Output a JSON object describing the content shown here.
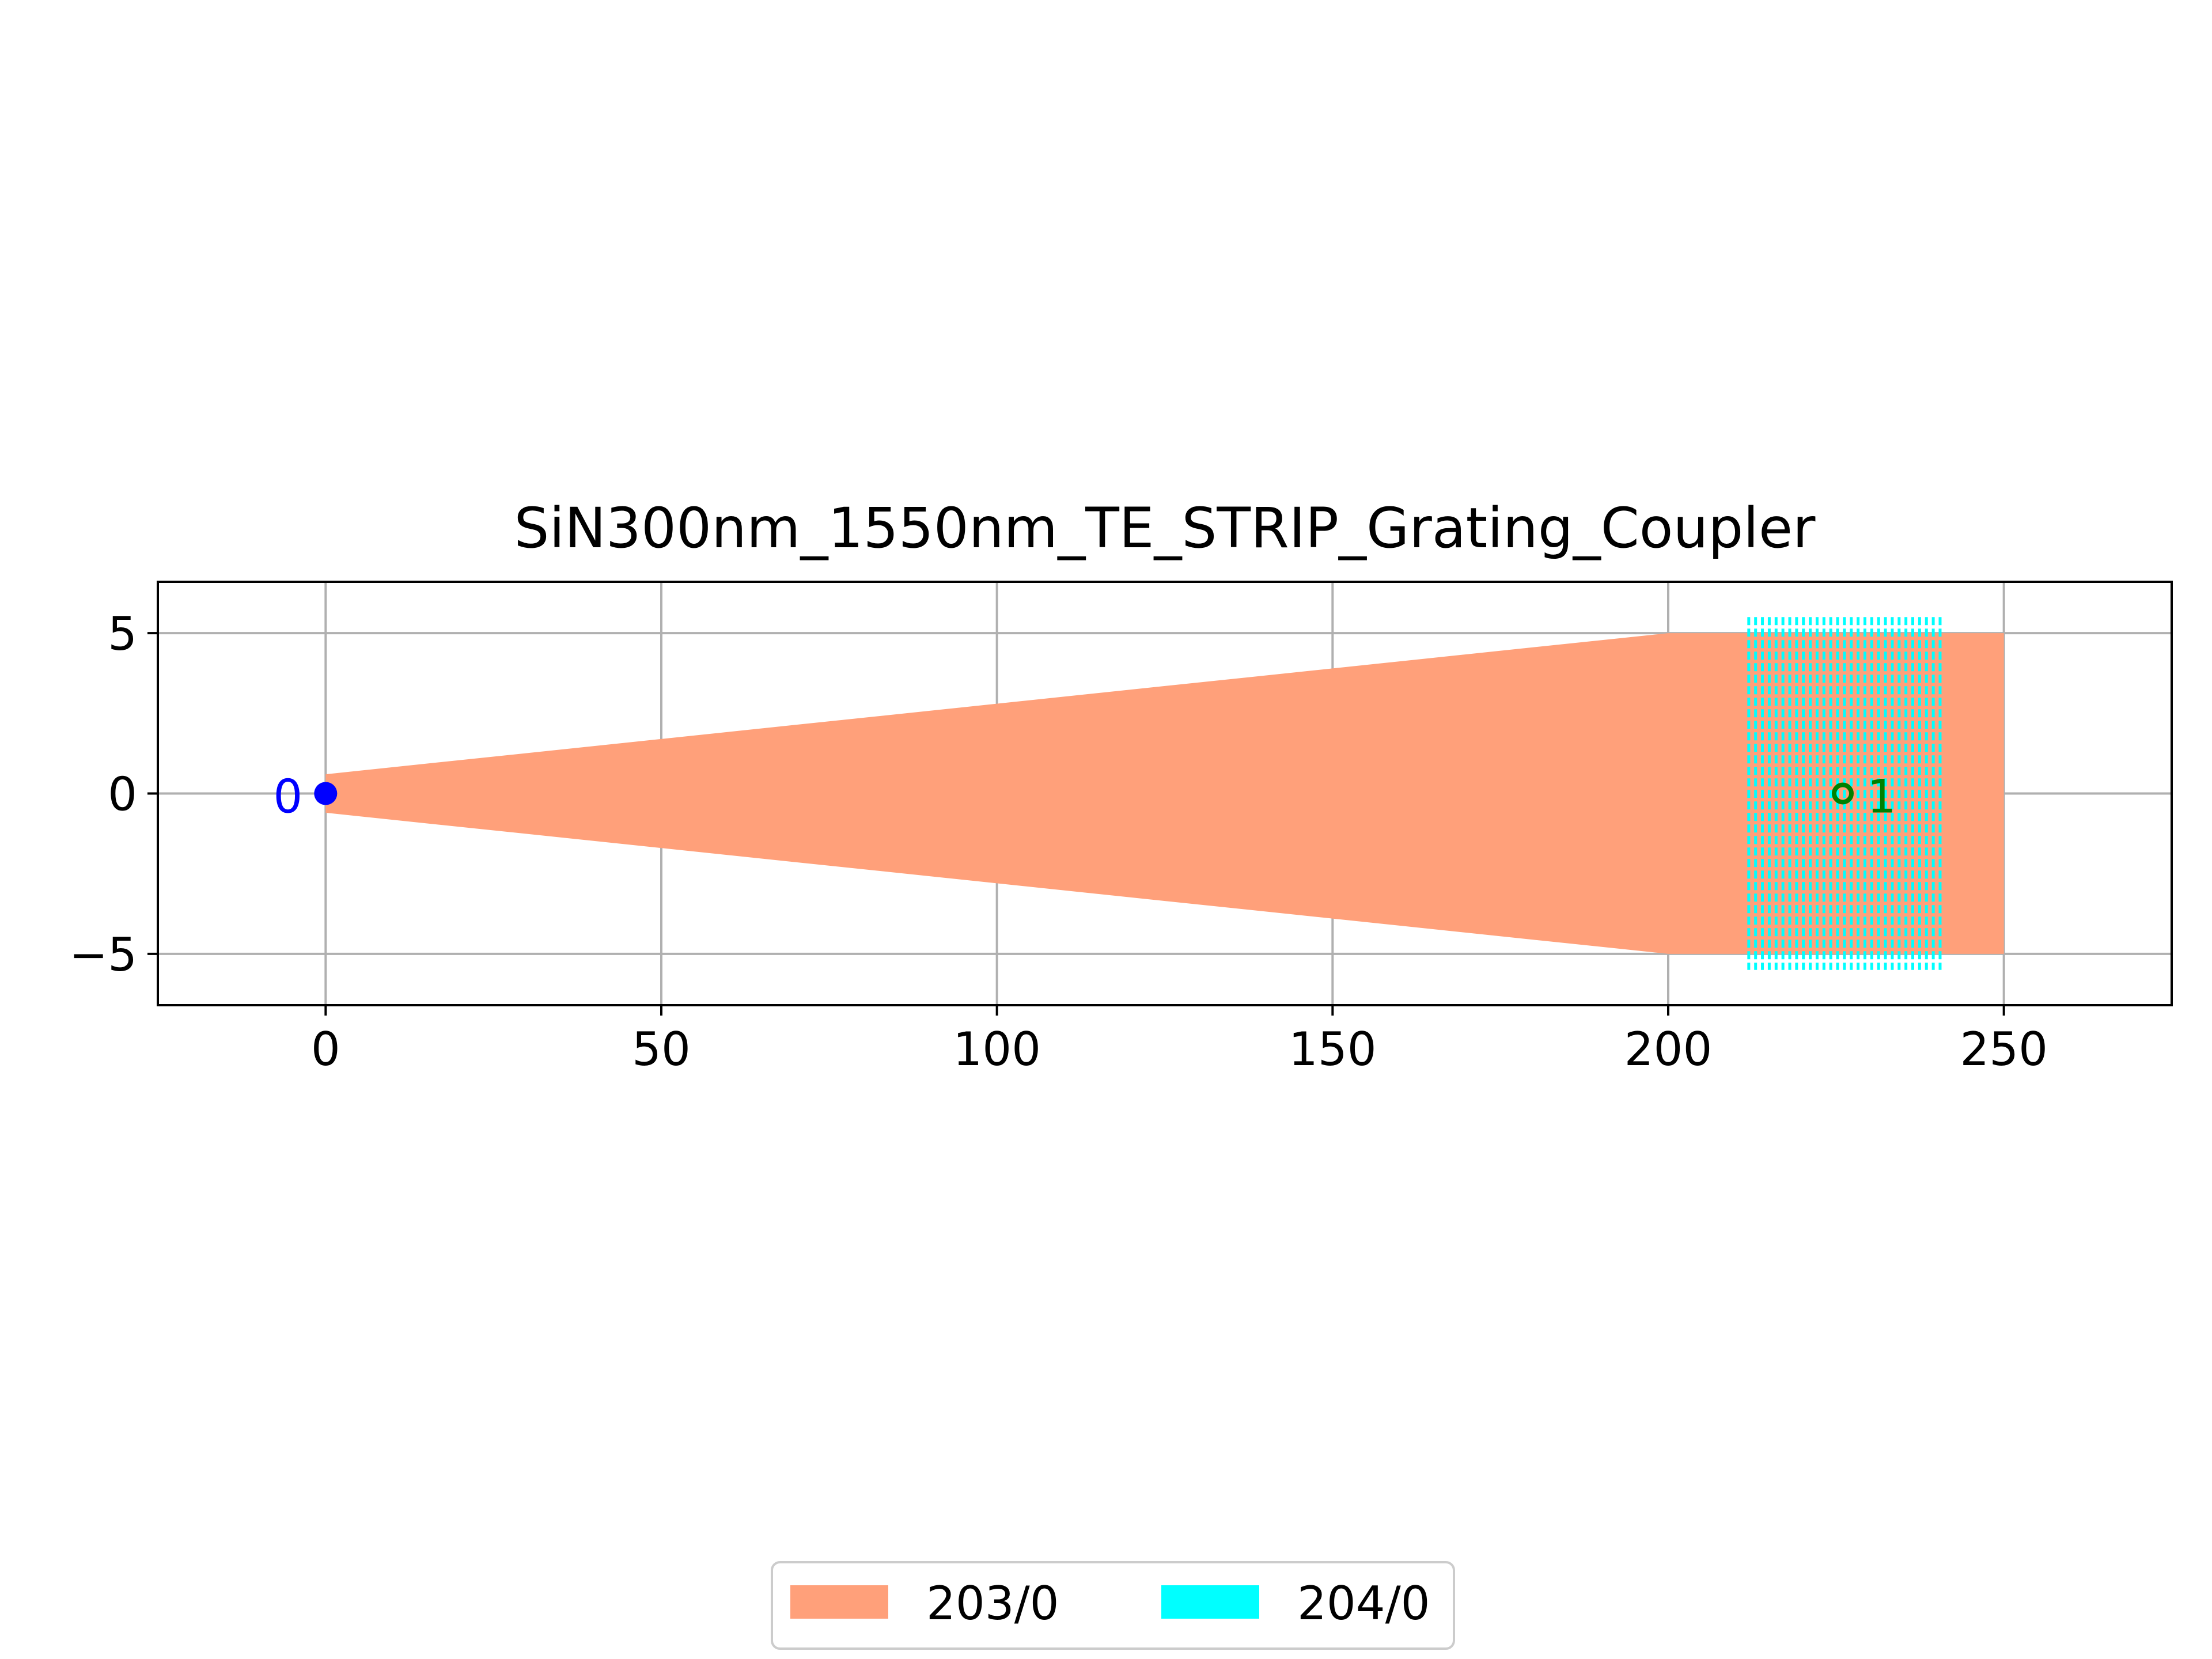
{
  "chart_data": {
    "type": "layout",
    "title": "SiN300nm_1550nm_TE_STRIP_Grating_Coupler",
    "xlabel": "",
    "ylabel": "",
    "xlim": [
      -25,
      275
    ],
    "ylim": [
      -6.6,
      6.6
    ],
    "x_ticks": [
      0,
      50,
      100,
      150,
      200,
      250
    ],
    "y_ticks": [
      -5,
      0,
      5
    ],
    "y_tick_labels": [
      "−5",
      "0",
      "5"
    ],
    "grid": true,
    "legend": {
      "placement": "bottom-center",
      "columns": 2
    },
    "layers": [
      {
        "name": "203/0",
        "color": "#ffa07a",
        "polygon": [
          [
            0,
            0.6
          ],
          [
            200,
            5
          ],
          [
            250,
            5
          ],
          [
            250,
            -5
          ],
          [
            200,
            -5
          ],
          [
            0,
            -0.6
          ]
        ]
      },
      {
        "name": "204/0",
        "color": "#00ffff",
        "grating": {
          "x_start": 212,
          "x_end": 240.5,
          "count": 29,
          "y_min": -5.5,
          "y_max": 5.5
        }
      }
    ],
    "ports": [
      {
        "label": "0",
        "x": 0,
        "y": 0,
        "color": "#0000ff",
        "marker": "filled-circle"
      },
      {
        "label": "1",
        "x": 226,
        "y": 0,
        "color": "#008000",
        "marker": "open-circle"
      }
    ]
  }
}
